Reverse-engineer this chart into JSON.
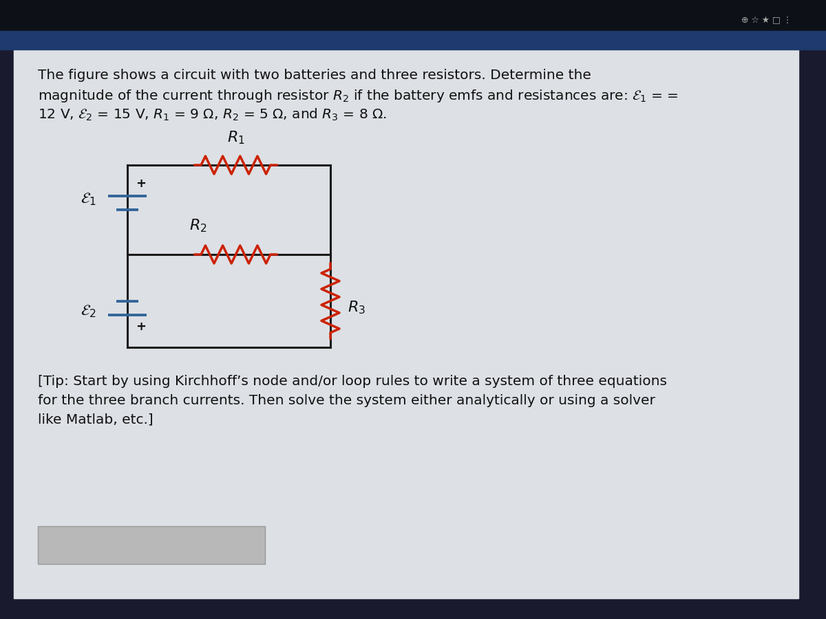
{
  "outer_bg": "#1a1a2e",
  "content_bg": "#dde0e5",
  "wire_color": "#1a1a1a",
  "resistor_color": "#cc2200",
  "battery_color": "#336699",
  "label_color": "#111111",
  "top_bar_color": "#1a3a6a",
  "answer_box_color": "#c0c0c0",
  "text_color": "#111111",
  "title_line1": "The figure shows a circuit with two batteries and three resistors. Determine the",
  "title_line2": "magnitude of the current through resistor $R_2$ if the battery emfs and resistances are: $\\mathcal{E}_1$ = =",
  "title_line3": "12 V, $\\mathcal{E}_2$ = 15 V, $R_1$ = 9 Ω, $R_2$ = 5 Ω, and $R_3$ = 8 Ω.",
  "tip_line1": "[Tip: Start by using Kirchhoff’s node and/or loop rules to write a system of three equations",
  "tip_line2": "for the three branch currents. Then solve the system either analytically or using a solver",
  "tip_line3": "like Matlab, etc.]"
}
